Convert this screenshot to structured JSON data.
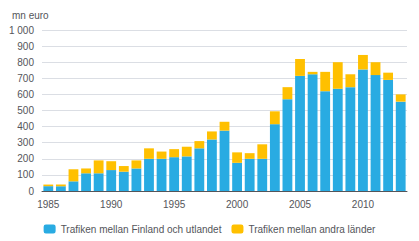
{
  "chart_data": {
    "type": "bar",
    "stacked": true,
    "ylabel": "mn euro",
    "categories": [
      1985,
      null,
      null,
      null,
      null,
      1990,
      null,
      null,
      null,
      null,
      1995,
      null,
      null,
      null,
      null,
      2000,
      null,
      null,
      null,
      null,
      2005,
      null,
      null,
      null,
      null,
      2010,
      null,
      null,
      null
    ],
    "series": [
      {
        "name": "Trafiken mellan Finland och utlandet",
        "color": "#29ABE2",
        "values": [
          30,
          30,
          60,
          110,
          110,
          130,
          120,
          140,
          200,
          200,
          210,
          215,
          265,
          320,
          375,
          175,
          200,
          200,
          415,
          570,
          715,
          725,
          620,
          635,
          645,
          755,
          720,
          690,
          555
        ]
      },
      {
        "name": "Trafiken mellan andra länder",
        "color": "#FFC000",
        "values": [
          10,
          10,
          75,
          30,
          80,
          55,
          35,
          50,
          65,
          45,
          50,
          60,
          45,
          50,
          55,
          65,
          35,
          90,
          80,
          75,
          105,
          15,
          120,
          165,
          80,
          90,
          80,
          45,
          45
        ]
      }
    ],
    "ylim": [
      0,
      1000
    ],
    "yticks": [
      0,
      100,
      200,
      300,
      400,
      500,
      600,
      700,
      800,
      900,
      {
        "value": 1000,
        "label": "1 000"
      }
    ],
    "grid": true,
    "legend": "bottom"
  }
}
